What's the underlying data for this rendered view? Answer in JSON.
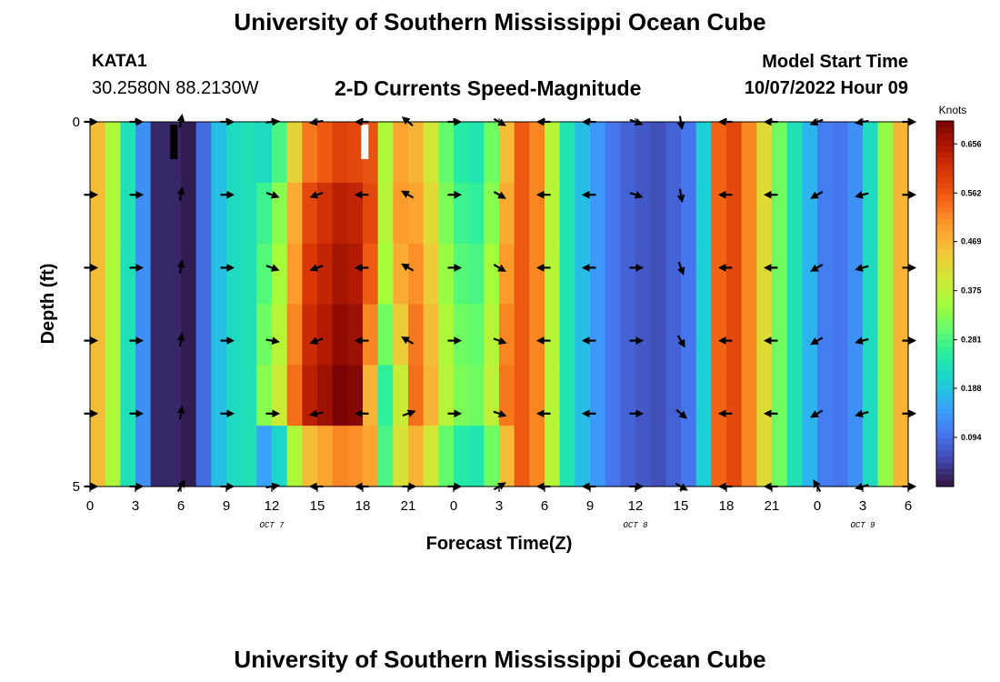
{
  "header": {
    "title": "University of Southern Mississippi Ocean Cube",
    "footer_title": "University of Southern Mississippi Ocean Cube",
    "station_id": "KATA1",
    "location": "30.2580N  88.2130W",
    "product": "2-D Currents Speed-Magnitude",
    "model_start_label": "Model Start Time",
    "model_start_value": "10/07/2022 Hour 09"
  },
  "chart_data": {
    "type": "heatmap",
    "title": "2-D Currents Speed-Magnitude",
    "xlabel": "Forecast Time(Z)",
    "ylabel": "Depth (ft)",
    "x_start_hour": 0,
    "x_end_hour": 54,
    "xlim": [
      0,
      54
    ],
    "ylim": [
      0,
      5
    ],
    "x_ticks": [
      {
        "hour": 0,
        "label": "0"
      },
      {
        "hour": 3,
        "label": "3"
      },
      {
        "hour": 6,
        "label": "6"
      },
      {
        "hour": 9,
        "label": "9"
      },
      {
        "hour": 12,
        "label": "12"
      },
      {
        "hour": 15,
        "label": "15"
      },
      {
        "hour": 18,
        "label": "18"
      },
      {
        "hour": 21,
        "label": "21"
      },
      {
        "hour": 24,
        "label": "0"
      },
      {
        "hour": 27,
        "label": "3"
      },
      {
        "hour": 30,
        "label": "6"
      },
      {
        "hour": 33,
        "label": "9"
      },
      {
        "hour": 36,
        "label": "12"
      },
      {
        "hour": 39,
        "label": "15"
      },
      {
        "hour": 42,
        "label": "18"
      },
      {
        "hour": 45,
        "label": "21"
      },
      {
        "hour": 48,
        "label": "0"
      },
      {
        "hour": 51,
        "label": "3"
      },
      {
        "hour": 54,
        "label": "6"
      }
    ],
    "date_labels": [
      {
        "hour": 12,
        "label": "OCT 7"
      },
      {
        "hour": 36,
        "label": "OCT 8"
      },
      {
        "hour": 51,
        "label": "OCT 9"
      }
    ],
    "y_ticks": [
      {
        "depth": 0,
        "label": "0"
      },
      {
        "depth": 5,
        "label": "5"
      }
    ],
    "colorbar": {
      "label": "Knots",
      "min": 0,
      "max": 0.7,
      "ticks": [
        "0.094",
        "0.188",
        "0.281",
        "0.375",
        "0.469",
        "0.562",
        "0.656"
      ],
      "tick_values": [
        0.094,
        0.188,
        0.281,
        0.375,
        0.469,
        0.562,
        0.656
      ],
      "colormap": [
        "#30123b",
        "#4145ab",
        "#4675ed",
        "#39a2fc",
        "#1bcfd4",
        "#24eca6",
        "#61fc6c",
        "#a4fc3b",
        "#d1e834",
        "#f3c63a",
        "#fe9b2d",
        "#f36315",
        "#d93806",
        "#b11901",
        "#7a0403"
      ]
    },
    "speed_profile_knots": [
      0.46,
      0.36,
      0.23,
      0.13,
      0.02,
      0.02,
      0.01,
      0.09,
      0.18,
      0.22,
      0.23,
      0.27,
      0.33,
      0.48,
      0.58,
      0.61,
      0.64,
      0.63,
      0.52,
      0.31,
      0.44,
      0.49,
      0.42,
      0.32,
      0.27,
      0.26,
      0.33,
      0.48,
      0.56,
      0.52,
      0.37,
      0.24,
      0.18,
      0.14,
      0.1,
      0.08,
      0.07,
      0.06,
      0.08,
      0.1,
      0.2,
      0.55,
      0.58,
      0.52,
      0.42,
      0.31,
      0.23,
      0.17,
      0.11,
      0.1,
      0.13,
      0.22,
      0.34,
      0.47,
      0.56
    ],
    "depth_adjust_knots": {
      "ranges": [
        [
          11,
          17
        ],
        [
          18,
          20
        ],
        [
          21,
          27
        ]
      ],
      "per_layer": [
        [
          -0.05,
          0.05,
          -0.02
        ],
        [
          0.0,
          0.06,
          0.0
        ],
        [
          0.02,
          0.04,
          0.02
        ],
        [
          0.04,
          0.0,
          0.04
        ],
        [
          0.06,
          -0.05,
          0.05
        ],
        [
          -0.12,
          -0.03,
          -0.02
        ]
      ]
    },
    "velocity_arrows": {
      "hours": [
        0,
        3,
        6,
        9,
        12,
        15,
        18,
        21,
        24,
        27,
        30,
        33,
        36,
        39,
        42,
        45,
        48,
        51,
        54
      ],
      "depths": [
        0,
        1,
        2,
        3,
        4,
        5
      ],
      "direction_deg": [
        0,
        0,
        80,
        0,
        5,
        190,
        180,
        140,
        0,
        330,
        180,
        180,
        340,
        280,
        180,
        180,
        200,
        190,
        0
      ],
      "direction_deg_by_depth": [
        [
          0,
          0,
          80,
          0,
          5,
          190,
          180,
          140,
          0,
          330,
          180,
          180,
          340,
          280,
          180,
          180,
          200,
          190,
          0
        ],
        [
          0,
          0,
          80,
          0,
          340,
          200,
          180,
          150,
          0,
          330,
          180,
          180,
          340,
          280,
          180,
          180,
          210,
          195,
          0
        ],
        [
          0,
          0,
          80,
          0,
          340,
          200,
          180,
          150,
          0,
          330,
          180,
          180,
          0,
          290,
          180,
          180,
          210,
          195,
          0
        ],
        [
          0,
          0,
          80,
          0,
          350,
          200,
          180,
          150,
          0,
          340,
          180,
          180,
          0,
          300,
          180,
          180,
          210,
          195,
          0
        ],
        [
          0,
          0,
          80,
          0,
          0,
          190,
          180,
          20,
          0,
          340,
          180,
          180,
          0,
          320,
          180,
          180,
          210,
          195,
          0
        ],
        [
          0,
          0,
          60,
          0,
          10,
          180,
          180,
          0,
          0,
          30,
          180,
          180,
          0,
          330,
          180,
          180,
          120,
          195,
          0
        ]
      ]
    },
    "surface_markers": [
      {
        "hour": 5.3,
        "color": "black"
      },
      {
        "hour": 17.9,
        "color": "white"
      }
    ]
  }
}
